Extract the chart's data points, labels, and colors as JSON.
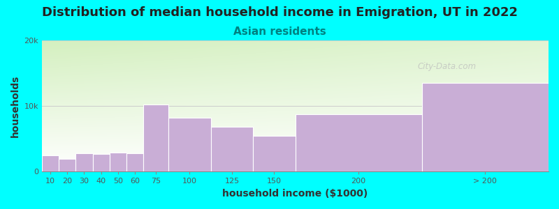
{
  "title": "Distribution of median household income in Emigration, UT in 2022",
  "subtitle": "Asian residents",
  "xlabel": "household income ($1000)",
  "ylabel": "households",
  "background_color": "#00FFFF",
  "bar_color": "#c9aed6",
  "categories": [
    "10",
    "20",
    "30",
    "40",
    "50",
    "60",
    "75",
    "100",
    "125",
    "150",
    "200",
    "> 200"
  ],
  "values": [
    2500,
    2000,
    2800,
    2700,
    2900,
    2800,
    10200,
    8200,
    6800,
    5500,
    8700,
    13500
  ],
  "bar_lefts": [
    0,
    10,
    20,
    30,
    40,
    50,
    60,
    75,
    100,
    125,
    150,
    225
  ],
  "bar_widths": [
    10,
    10,
    10,
    10,
    10,
    10,
    15,
    25,
    25,
    25,
    75,
    75
  ],
  "tick_positions": [
    5,
    15,
    25,
    35,
    45,
    55,
    67.5,
    87.5,
    112.5,
    137.5,
    187.5,
    262.5
  ],
  "xlim": [
    0,
    300
  ],
  "ylim": [
    0,
    20000
  ],
  "ytick_labels": [
    "0",
    "10k",
    "20k"
  ],
  "ytick_values": [
    0,
    10000,
    20000
  ],
  "title_fontsize": 13,
  "subtitle_fontsize": 11,
  "axis_label_fontsize": 10,
  "watermark": "City-Data.com"
}
